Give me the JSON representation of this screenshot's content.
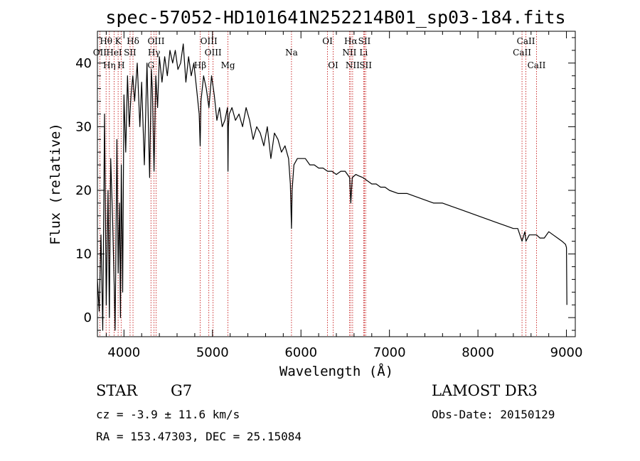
{
  "chart_data": {
    "type": "line",
    "title": "spec-57052-HD101641N252214B01_sp03-184.fits",
    "xlabel": "Wavelength (Å)",
    "ylabel": "Flux (relative)",
    "xlim": [
      3700,
      9100
    ],
    "ylim": [
      -3,
      45
    ],
    "x_ticks": [
      4000,
      5000,
      6000,
      7000,
      8000,
      9000
    ],
    "y_ticks": [
      0,
      10,
      20,
      30,
      40
    ],
    "series": [
      {
        "name": "spectrum",
        "x": [
          3700,
          3720,
          3740,
          3760,
          3780,
          3800,
          3820,
          3835,
          3850,
          3870,
          3890,
          3900,
          3920,
          3935,
          3950,
          3960,
          3970,
          3985,
          4000,
          4020,
          4040,
          4060,
          4080,
          4100,
          4120,
          4150,
          4180,
          4200,
          4230,
          4260,
          4290,
          4300,
          4310,
          4320,
          4340,
          4360,
          4380,
          4400,
          4430,
          4460,
          4490,
          4520,
          4550,
          4580,
          4610,
          4640,
          4670,
          4700,
          4730,
          4760,
          4790,
          4820,
          4850,
          4861,
          4870,
          4900,
          4930,
          4960,
          4990,
          5020,
          5050,
          5080,
          5110,
          5140,
          5170,
          5175,
          5180,
          5190,
          5220,
          5260,
          5300,
          5340,
          5380,
          5420,
          5460,
          5500,
          5540,
          5580,
          5620,
          5660,
          5700,
          5740,
          5780,
          5820,
          5860,
          5880,
          5893,
          5900,
          5920,
          5960,
          6000,
          6050,
          6100,
          6150,
          6200,
          6250,
          6300,
          6350,
          6400,
          6450,
          6500,
          6550,
          6563,
          6580,
          6620,
          6650,
          6700,
          6750,
          6800,
          6850,
          6900,
          6950,
          7000,
          7100,
          7200,
          7300,
          7400,
          7500,
          7600,
          7700,
          7800,
          7900,
          8000,
          8100,
          8200,
          8300,
          8400,
          8450,
          8498,
          8530,
          8542,
          8580,
          8620,
          8662,
          8700,
          8750,
          8800,
          8850,
          8900,
          8950,
          8990,
          9000,
          9005
        ],
        "values": [
          6,
          1,
          13,
          -2,
          32,
          2,
          20,
          0,
          25,
          16,
          5,
          -2,
          28,
          7,
          18,
          0,
          24,
          4,
          35,
          26,
          38,
          30,
          35,
          38,
          34,
          40,
          30,
          37,
          24,
          40,
          22,
          31,
          39,
          36,
          23,
          38,
          33,
          41,
          37,
          41,
          38,
          42,
          40,
          42,
          39,
          40,
          43,
          37,
          41,
          38,
          40,
          36,
          32,
          27,
          34,
          38,
          36,
          33,
          38,
          35,
          31,
          33,
          30,
          31,
          33,
          23,
          30,
          32,
          33,
          31,
          32,
          30,
          33,
          31,
          28,
          30,
          29,
          27,
          30,
          25,
          29,
          28,
          26,
          27,
          25,
          21,
          14,
          20,
          24,
          25,
          25,
          25,
          24,
          24,
          23.5,
          23.5,
          23,
          23,
          22.5,
          23,
          23,
          22,
          18,
          22,
          22.5,
          22.3,
          22,
          21.5,
          21,
          21,
          20.5,
          20.5,
          20,
          19.5,
          19.5,
          19,
          18.5,
          18,
          18,
          17.5,
          17,
          16.5,
          16,
          15.5,
          15,
          14.5,
          14,
          14,
          12,
          13.5,
          12,
          13,
          13,
          13,
          12.5,
          12.5,
          13.5,
          13,
          12.5,
          12,
          11.5,
          11,
          2
        ]
      }
    ],
    "line_markers": [
      {
        "label": "Hθ",
        "x": 3798,
        "row": 0
      },
      {
        "label": "OII",
        "x": 3727,
        "row": 1
      },
      {
        "label": "Hη",
        "x": 3835,
        "row": 2
      },
      {
        "label": "HeI",
        "x": 3889,
        "row": 1
      },
      {
        "label": "H",
        "x": 3968,
        "row": 2
      },
      {
        "label": "K",
        "x": 3934,
        "row": 0
      },
      {
        "label": "SII",
        "x": 4069,
        "row": 1
      },
      {
        "label": "Hδ",
        "x": 4102,
        "row": 0
      },
      {
        "label": "OIII",
        "x": 4363,
        "row": 0
      },
      {
        "label": "Hγ",
        "x": 4340,
        "row": 1
      },
      {
        "label": "G",
        "x": 4305,
        "row": 2
      },
      {
        "label": "OIII",
        "x": 4959,
        "row": 0
      },
      {
        "label": "OIII",
        "x": 5007,
        "row": 1
      },
      {
        "label": "Hβ",
        "x": 4861,
        "row": 2
      },
      {
        "label": "Mg",
        "x": 5175,
        "row": 2
      },
      {
        "label": "Na",
        "x": 5893,
        "row": 1
      },
      {
        "label": "OI",
        "x": 6300,
        "row": 0
      },
      {
        "label": "OI",
        "x": 6364,
        "row": 2
      },
      {
        "label": "Hα",
        "x": 6563,
        "row": 0
      },
      {
        "label": "NII",
        "x": 6548,
        "row": 1
      },
      {
        "label": "NII",
        "x": 6584,
        "row": 2
      },
      {
        "label": "SII",
        "x": 6717,
        "row": 0
      },
      {
        "label": "Li",
        "x": 6708,
        "row": 1
      },
      {
        "label": "SII",
        "x": 6731,
        "row": 2
      },
      {
        "label": "CaII",
        "x": 8542,
        "row": 0
      },
      {
        "label": "CaII",
        "x": 8498,
        "row": 1
      },
      {
        "label": "CaII",
        "x": 8662,
        "row": 2
      }
    ],
    "marker_color": "#c00000"
  },
  "info": {
    "object_class": "STAR",
    "subclass": "G7",
    "survey": "LAMOST DR3",
    "redshift": "cz = -3.9 ± 11.6 km/s",
    "obs_date": "Obs-Date: 20150129",
    "coords": "RA = 153.47303, DEC =  25.15084"
  }
}
